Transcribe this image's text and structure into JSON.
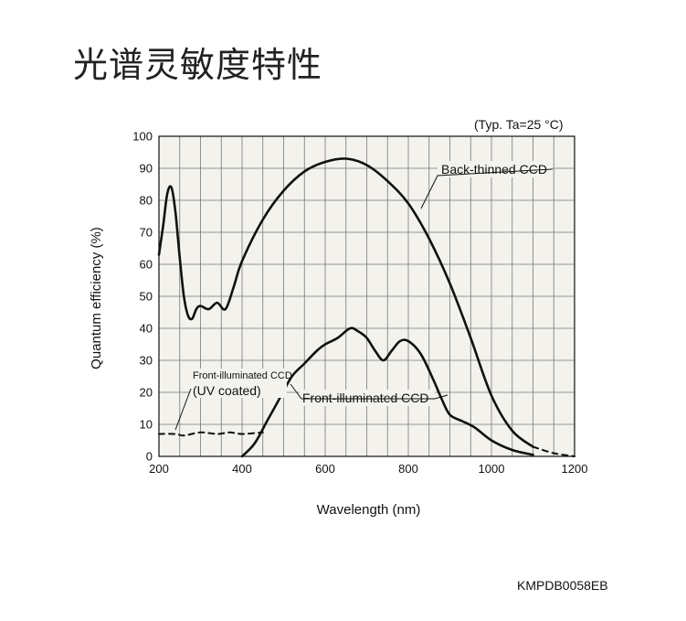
{
  "page": {
    "title": "光谱灵敏度特性",
    "condition": "(Typ. Ta=25 °C)",
    "code": "KMPDB0058EB"
  },
  "chart_data": {
    "type": "line",
    "title": "",
    "xlabel": "Wavelength (nm)",
    "ylabel": "Quantum efficiency (%)",
    "xlim": [
      200,
      1200
    ],
    "ylim": [
      0,
      100
    ],
    "xticks": [
      200,
      400,
      600,
      800,
      1000,
      1200
    ],
    "yticks": [
      0,
      10,
      20,
      30,
      40,
      50,
      60,
      70,
      80,
      90,
      100
    ],
    "grid": true,
    "background": "#f3f2ec",
    "line_color": "#111111",
    "series": [
      {
        "name": "Back-thinned CCD",
        "style": "solid",
        "points": [
          [
            200,
            63
          ],
          [
            210,
            72
          ],
          [
            220,
            82
          ],
          [
            230,
            84
          ],
          [
            240,
            76
          ],
          [
            250,
            62
          ],
          [
            260,
            50
          ],
          [
            270,
            44
          ],
          [
            280,
            43
          ],
          [
            290,
            46
          ],
          [
            300,
            47
          ],
          [
            320,
            46
          ],
          [
            340,
            48
          ],
          [
            360,
            46
          ],
          [
            380,
            53
          ],
          [
            400,
            61
          ],
          [
            450,
            74
          ],
          [
            500,
            83
          ],
          [
            550,
            89
          ],
          [
            600,
            92
          ],
          [
            650,
            93
          ],
          [
            700,
            91
          ],
          [
            750,
            86
          ],
          [
            800,
            79
          ],
          [
            850,
            68
          ],
          [
            900,
            54
          ],
          [
            950,
            37
          ],
          [
            1000,
            19
          ],
          [
            1050,
            8
          ],
          [
            1100,
            3
          ]
        ]
      },
      {
        "name": "Back-thinned CCD",
        "style": "dashed",
        "points": [
          [
            1100,
            3
          ],
          [
            1150,
            1
          ],
          [
            1200,
            0
          ]
        ]
      },
      {
        "name": "Front-illuminated CCD",
        "style": "solid",
        "points": [
          [
            400,
            0
          ],
          [
            430,
            4
          ],
          [
            460,
            11
          ],
          [
            490,
            18
          ],
          [
            520,
            25
          ],
          [
            550,
            29
          ],
          [
            580,
            33
          ],
          [
            600,
            35
          ],
          [
            630,
            37
          ],
          [
            660,
            40
          ],
          [
            680,
            39
          ],
          [
            700,
            37
          ],
          [
            720,
            33
          ],
          [
            740,
            30
          ],
          [
            760,
            33
          ],
          [
            780,
            36
          ],
          [
            800,
            36
          ],
          [
            830,
            32
          ],
          [
            860,
            24
          ],
          [
            880,
            18
          ],
          [
            900,
            13
          ],
          [
            930,
            11
          ],
          [
            960,
            9
          ],
          [
            1000,
            5
          ],
          [
            1050,
            2
          ],
          [
            1100,
            0.5
          ]
        ]
      },
      {
        "name": "Front-illuminated CCD (UV coated)",
        "style": "dashed",
        "points": [
          [
            200,
            7
          ],
          [
            240,
            7
          ],
          [
            260,
            6.5
          ],
          [
            300,
            7.5
          ],
          [
            340,
            7
          ],
          [
            370,
            7.5
          ],
          [
            400,
            7
          ],
          [
            450,
            7.5
          ]
        ]
      }
    ],
    "annotations": [
      {
        "text": "Back-thinned CCD",
        "x": 910,
        "y": 90
      },
      {
        "text": "Front-illuminated CCD",
        "x": 610,
        "y": 21
      },
      {
        "text": "Front-illuminated CCD",
        "x": 280,
        "y": 26
      },
      {
        "text": "(UV coated)",
        "x": 280,
        "y": 21
      }
    ]
  }
}
